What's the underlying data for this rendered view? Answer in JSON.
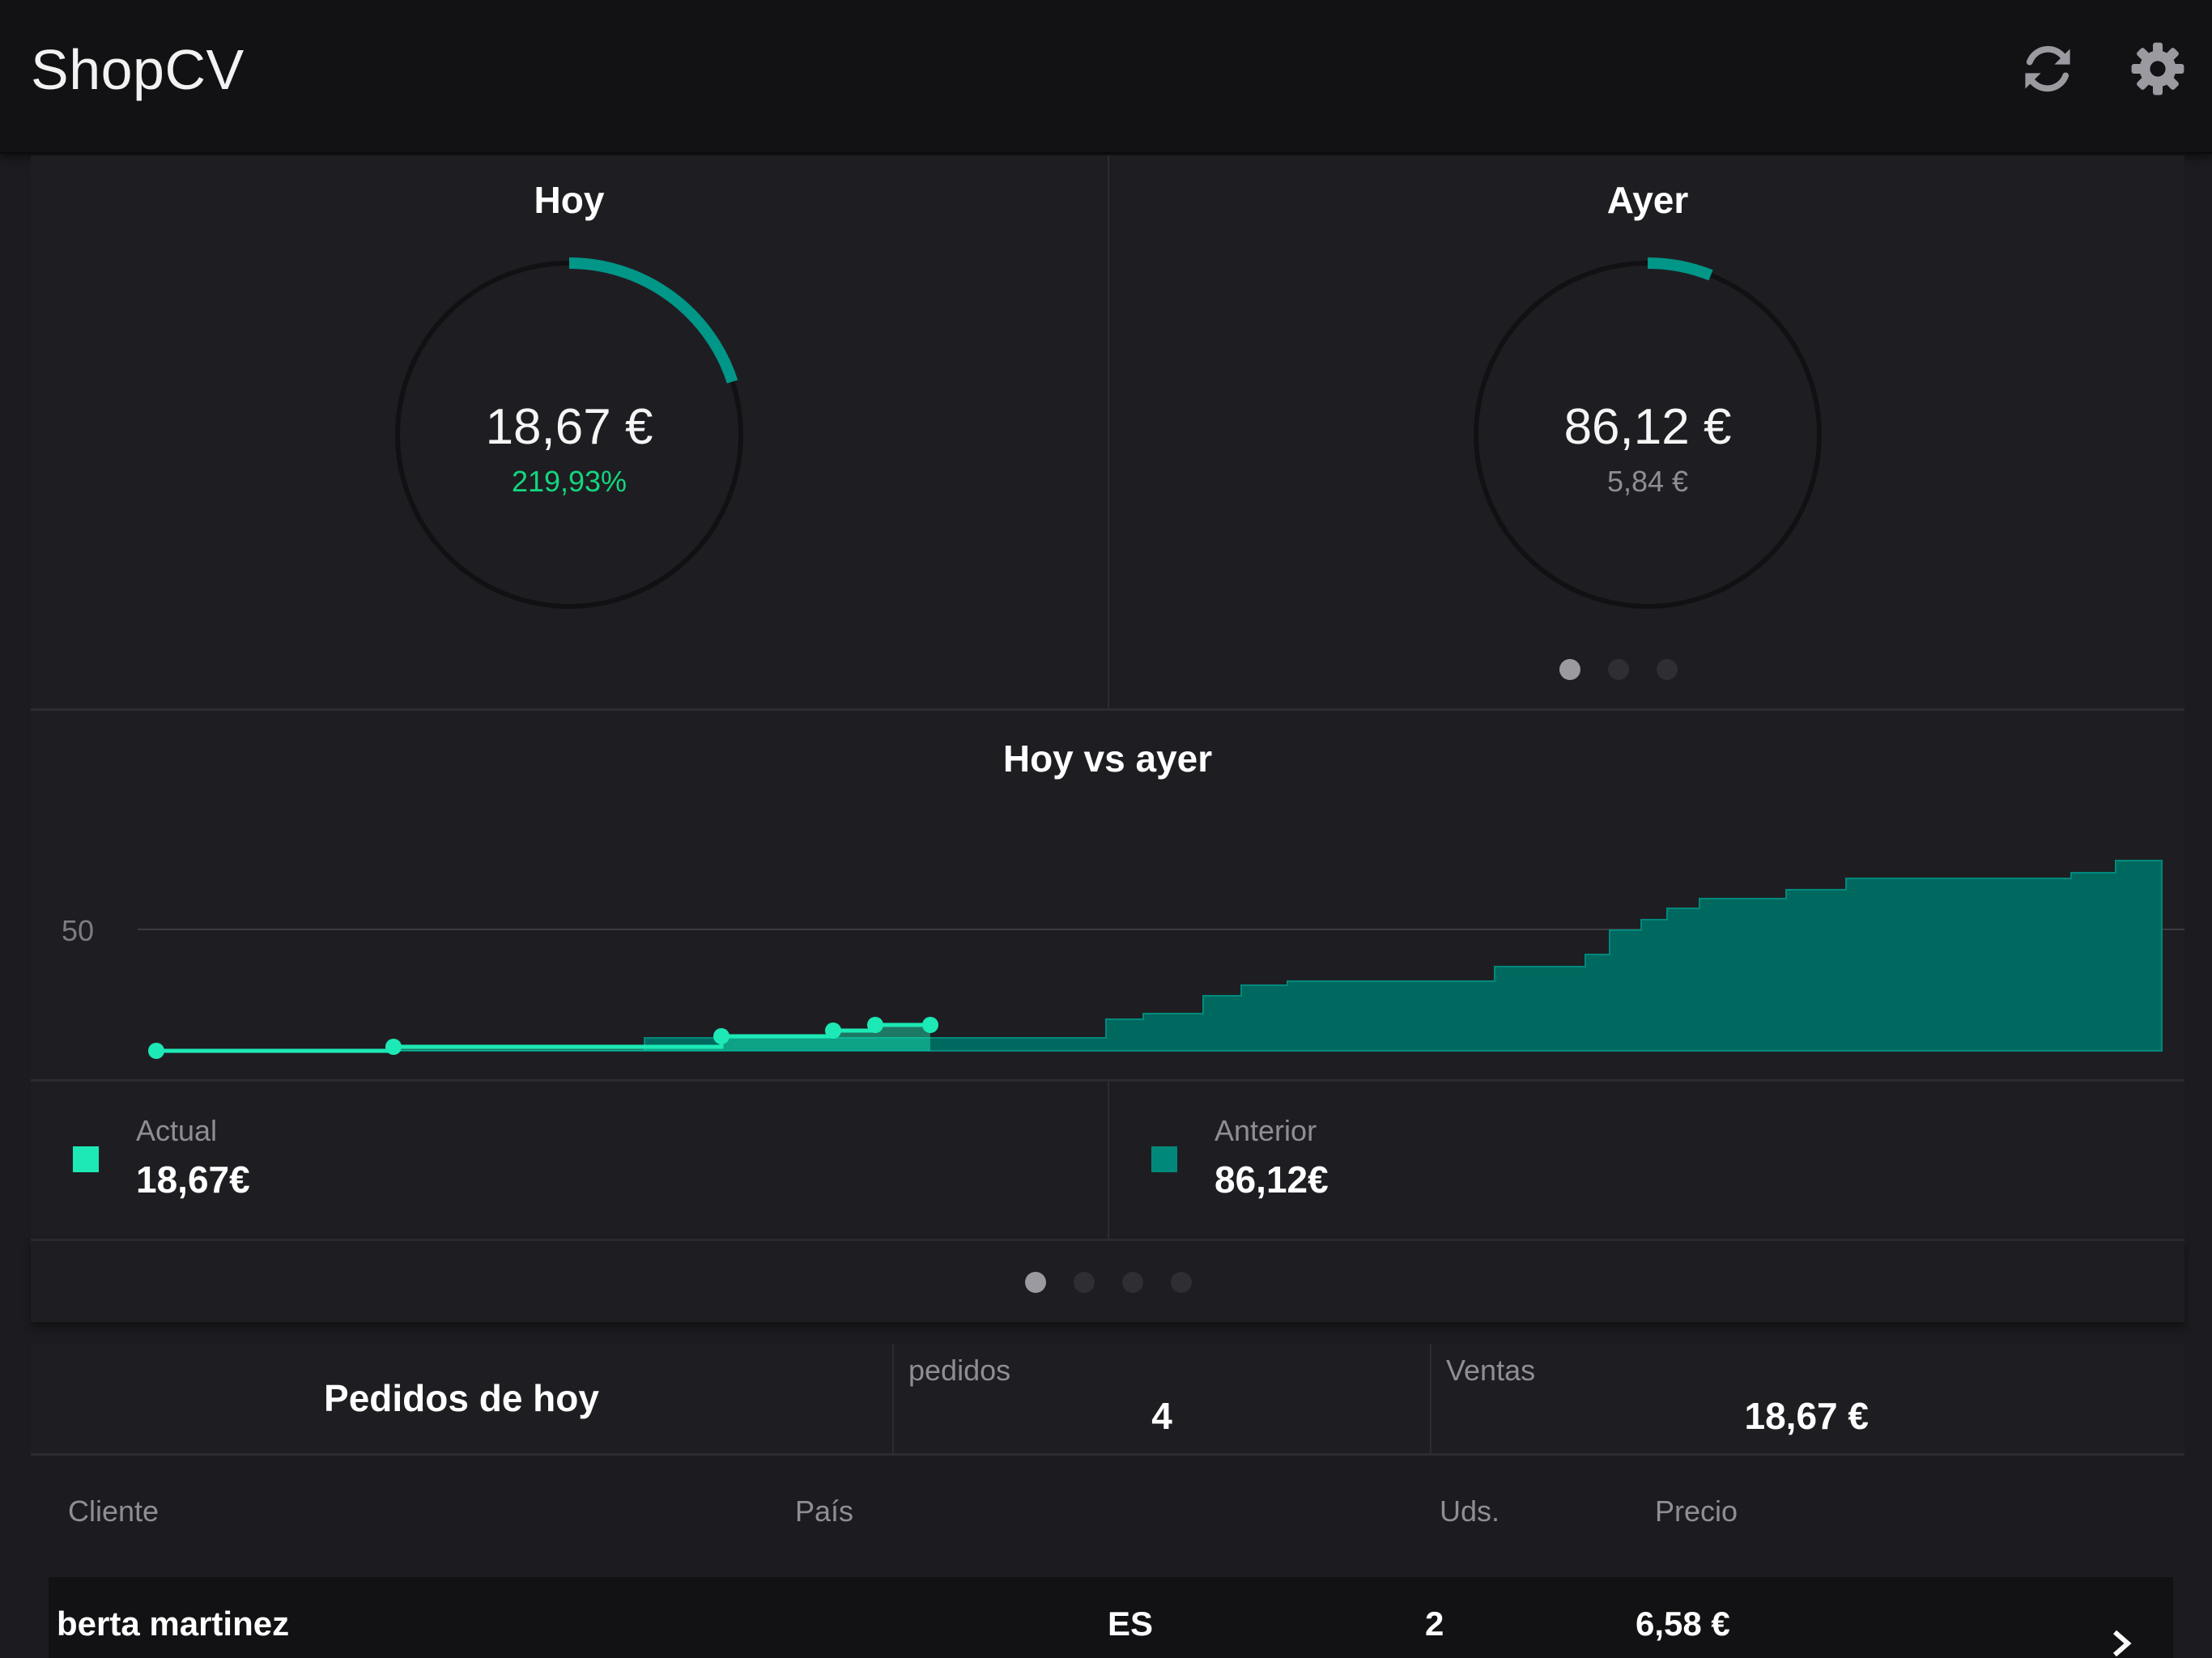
{
  "app": {
    "title": "ShopCV"
  },
  "toolbar": {
    "refresh_icon": "refresh-icon",
    "settings_icon": "gear-icon"
  },
  "gauges": [
    {
      "title": "Hoy",
      "value": "18,67 €",
      "sub": "219,93%",
      "sub_color": "#13d67e",
      "progress_fraction": 0.2
    },
    {
      "title": "Ayer",
      "value": "86,12 €",
      "sub": "5,84 €",
      "sub_color": "#8e8e94",
      "progress_fraction": 0.06
    }
  ],
  "gauge_pager": {
    "pages": 3,
    "active": 0
  },
  "chart_data": {
    "type": "area",
    "title": "Hoy vs ayer",
    "y_tick_labels": [
      "50"
    ],
    "grid": true,
    "series": [
      {
        "name": "Actual",
        "color": "#1de9b6"
      },
      {
        "name": "Anterior",
        "color": "#00897b"
      }
    ]
  },
  "legend": [
    {
      "label": "Actual",
      "value": "18,67€",
      "color": "#1de9b6"
    },
    {
      "label": "Anterior",
      "value": "86,12€",
      "color": "#00897b"
    }
  ],
  "chart_pager": {
    "pages": 4,
    "active": 0
  },
  "orders": {
    "title": "Pedidos de hoy",
    "pedidos_label": "pedidos",
    "pedidos_value": "4",
    "ventas_label": "Ventas",
    "ventas_value": "18,67 €"
  },
  "table": {
    "headers": {
      "cliente": "Cliente",
      "pais": "País",
      "uds": "Uds.",
      "precio": "Precio"
    },
    "rows": [
      {
        "cliente": "berta martinez",
        "pais": "ES",
        "uds": "2",
        "precio": "6,58 €"
      }
    ]
  },
  "colors": {
    "accent": "#009688",
    "background": "#1c1c20",
    "topbar": "#121214"
  }
}
